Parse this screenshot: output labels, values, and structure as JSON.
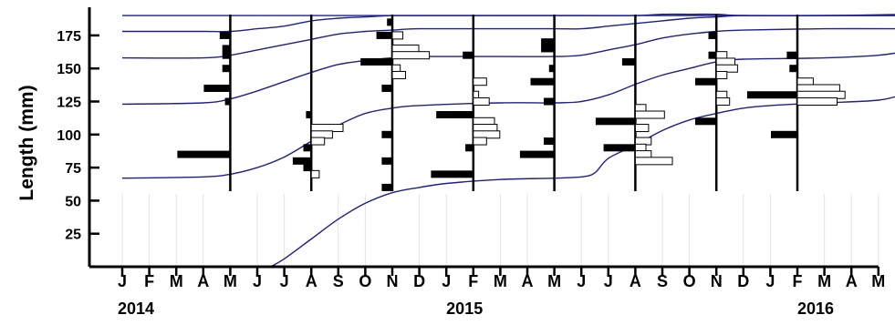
{
  "chart_data": {
    "type": "length-frequency with growth curves",
    "ylabel": "Length (mm)",
    "y_ticks": [
      25,
      50,
      75,
      100,
      125,
      150,
      175
    ],
    "y_range": [
      0,
      195
    ],
    "x_range": [
      0,
      29
    ],
    "month_labels": [
      "J",
      "F",
      "M",
      "A",
      "M",
      "J",
      "J",
      "A",
      "S",
      "O",
      "N",
      "D",
      "J",
      "F",
      "M",
      "A",
      "M",
      "J",
      "J",
      "A",
      "S",
      "O",
      "N",
      "D",
      "J",
      "F",
      "M",
      "A",
      "M"
    ],
    "year_labels": [
      {
        "label": "2014",
        "month_index": 0
      },
      {
        "label": "2015",
        "month_index": 12
      },
      {
        "label": "2016",
        "month_index": 25
      }
    ],
    "growth_curve_color": "#1f1f8c",
    "bar_fill_color": "#000000",
    "outline_bar_fill_color": "#ffffff",
    "growth_curves": [
      [
        [
          0,
          190
        ],
        [
          3,
          190
        ],
        [
          7,
          190
        ],
        [
          11,
          190
        ],
        [
          15,
          190
        ],
        [
          19,
          190
        ],
        [
          23,
          190
        ],
        [
          26,
          190
        ],
        [
          29,
          191
        ]
      ],
      [
        [
          0,
          178
        ],
        [
          3,
          178
        ],
        [
          4,
          178
        ],
        [
          5,
          180
        ],
        [
          6,
          182
        ],
        [
          7,
          186
        ],
        [
          8,
          188
        ],
        [
          9,
          189
        ],
        [
          10,
          190
        ],
        [
          11,
          190
        ],
        [
          14,
          190
        ],
        [
          17,
          190
        ],
        [
          19,
          190
        ],
        [
          20,
          191
        ],
        [
          21,
          191
        ],
        [
          22,
          191
        ],
        [
          23,
          190
        ],
        [
          26,
          190
        ],
        [
          29,
          190
        ]
      ],
      [
        [
          0,
          158
        ],
        [
          3,
          158
        ],
        [
          4,
          160
        ],
        [
          5,
          164
        ],
        [
          6,
          168
        ],
        [
          7,
          172
        ],
        [
          8,
          176
        ],
        [
          9,
          178
        ],
        [
          10,
          179
        ],
        [
          11,
          180
        ],
        [
          14,
          180
        ],
        [
          16,
          180
        ],
        [
          17,
          180
        ],
        [
          18,
          182
        ],
        [
          19,
          184
        ],
        [
          20,
          186
        ],
        [
          21,
          188
        ],
        [
          22,
          189
        ],
        [
          23,
          190
        ],
        [
          26,
          190
        ],
        [
          29,
          190
        ]
      ],
      [
        [
          0,
          123
        ],
        [
          3,
          124
        ],
        [
          4,
          127
        ],
        [
          5,
          133
        ],
        [
          6,
          140
        ],
        [
          7,
          147
        ],
        [
          8,
          153
        ],
        [
          9,
          156
        ],
        [
          10,
          158
        ],
        [
          11,
          159
        ],
        [
          14,
          159
        ],
        [
          16,
          159
        ],
        [
          17,
          160
        ],
        [
          18,
          164
        ],
        [
          19,
          168
        ],
        [
          20,
          173
        ],
        [
          21,
          176
        ],
        [
          22,
          178
        ],
        [
          23,
          179
        ],
        [
          26,
          180
        ],
        [
          29,
          180
        ]
      ],
      [
        [
          0,
          67
        ],
        [
          3,
          68
        ],
        [
          4,
          70
        ],
        [
          5,
          75
        ],
        [
          6,
          83
        ],
        [
          7,
          95
        ],
        [
          8,
          107
        ],
        [
          9,
          116
        ],
        [
          10,
          120
        ],
        [
          11,
          122
        ],
        [
          14,
          124
        ],
        [
          16,
          124
        ],
        [
          17,
          125
        ],
        [
          18,
          130
        ],
        [
          19,
          138
        ],
        [
          20,
          145
        ],
        [
          21,
          150
        ],
        [
          22,
          155
        ],
        [
          23,
          157
        ],
        [
          26,
          158
        ],
        [
          28,
          160
        ],
        [
          29,
          163
        ]
      ],
      [
        [
          5.5,
          0
        ],
        [
          6,
          6
        ],
        [
          7,
          21
        ],
        [
          8,
          36
        ],
        [
          9,
          48
        ],
        [
          10,
          56
        ],
        [
          11,
          60
        ],
        [
          12,
          63
        ],
        [
          14,
          66
        ],
        [
          16,
          67
        ],
        [
          17,
          68
        ],
        [
          17.5,
          71
        ],
        [
          18,
          82
        ],
        [
          19,
          92
        ],
        [
          20,
          103
        ],
        [
          21,
          111
        ],
        [
          22,
          116
        ],
        [
          23,
          120
        ],
        [
          24,
          122
        ],
        [
          26,
          124
        ],
        [
          28,
          126
        ],
        [
          29,
          131
        ]
      ]
    ],
    "sample_months": [
      4,
      7,
      10,
      13,
      16,
      19,
      22,
      25
    ],
    "samples": [
      {
        "month": 4,
        "left": [
          [
            175,
            0.4
          ],
          [
            165,
            0.3
          ],
          [
            160,
            0.3
          ],
          [
            150,
            0.3
          ],
          [
            135,
            1.0
          ],
          [
            125,
            0.2
          ],
          [
            85,
            2.0
          ]
        ],
        "right": []
      },
      {
        "month": 7,
        "left": [
          [
            115,
            0.2
          ],
          [
            90,
            0.3
          ],
          [
            80,
            0.7
          ],
          [
            75,
            0.3
          ]
        ],
        "right": [
          [
            105,
            1.2
          ],
          [
            100,
            0.8
          ],
          [
            95,
            0.5
          ],
          [
            70,
            0.3
          ]
        ]
      },
      {
        "month": 10,
        "left": [
          [
            185,
            0.2
          ],
          [
            175,
            0.6
          ],
          [
            155,
            1.2
          ],
          [
            135,
            0.4
          ],
          [
            100,
            0.4
          ],
          [
            80,
            0.4
          ],
          [
            60,
            0.4
          ]
        ],
        "right": [
          [
            175,
            0.4
          ],
          [
            165,
            1.0
          ],
          [
            160,
            1.4
          ],
          [
            150,
            0.3
          ],
          [
            145,
            0.5
          ]
        ]
      },
      {
        "month": 13,
        "left": [
          [
            160,
            0.4
          ],
          [
            115,
            1.4
          ],
          [
            90,
            0.3
          ],
          [
            70,
            1.6
          ]
        ],
        "right": [
          [
            140,
            0.5
          ],
          [
            130,
            0.2
          ],
          [
            125,
            0.6
          ],
          [
            110,
            0.8
          ],
          [
            105,
            0.9
          ],
          [
            100,
            1.0
          ],
          [
            95,
            0.5
          ]
        ]
      },
      {
        "month": 16,
        "left": [
          [
            170,
            0.5
          ],
          [
            165,
            0.5
          ],
          [
            150,
            0.2
          ],
          [
            140,
            0.9
          ],
          [
            125,
            0.4
          ],
          [
            95,
            0.4
          ],
          [
            85,
            1.3
          ]
        ],
        "right": []
      },
      {
        "month": 19,
        "left": [
          [
            155,
            0.5
          ],
          [
            110,
            1.5
          ],
          [
            90,
            1.2
          ]
        ],
        "right": [
          [
            120,
            0.4
          ],
          [
            115,
            1.1
          ],
          [
            105,
            0.5
          ],
          [
            95,
            0.6
          ],
          [
            90,
            0.4
          ],
          [
            85,
            0.6
          ],
          [
            80,
            1.4
          ]
        ]
      },
      {
        "month": 22,
        "left": [
          [
            175,
            0.3
          ],
          [
            160,
            0.3
          ],
          [
            140,
            0.8
          ],
          [
            110,
            0.8
          ]
        ],
        "right": [
          [
            160,
            0.4
          ],
          [
            155,
            0.7
          ],
          [
            150,
            0.8
          ],
          [
            145,
            0.4
          ],
          [
            130,
            0.4
          ],
          [
            125,
            0.5
          ]
        ]
      },
      {
        "month": 25,
        "left": [
          [
            160,
            0.4
          ],
          [
            150,
            0.3
          ],
          [
            130,
            1.9
          ],
          [
            100,
            1.0
          ]
        ],
        "right": [
          [
            140,
            0.6
          ],
          [
            135,
            1.6
          ],
          [
            130,
            1.8
          ],
          [
            125,
            1.5
          ]
        ]
      }
    ]
  }
}
